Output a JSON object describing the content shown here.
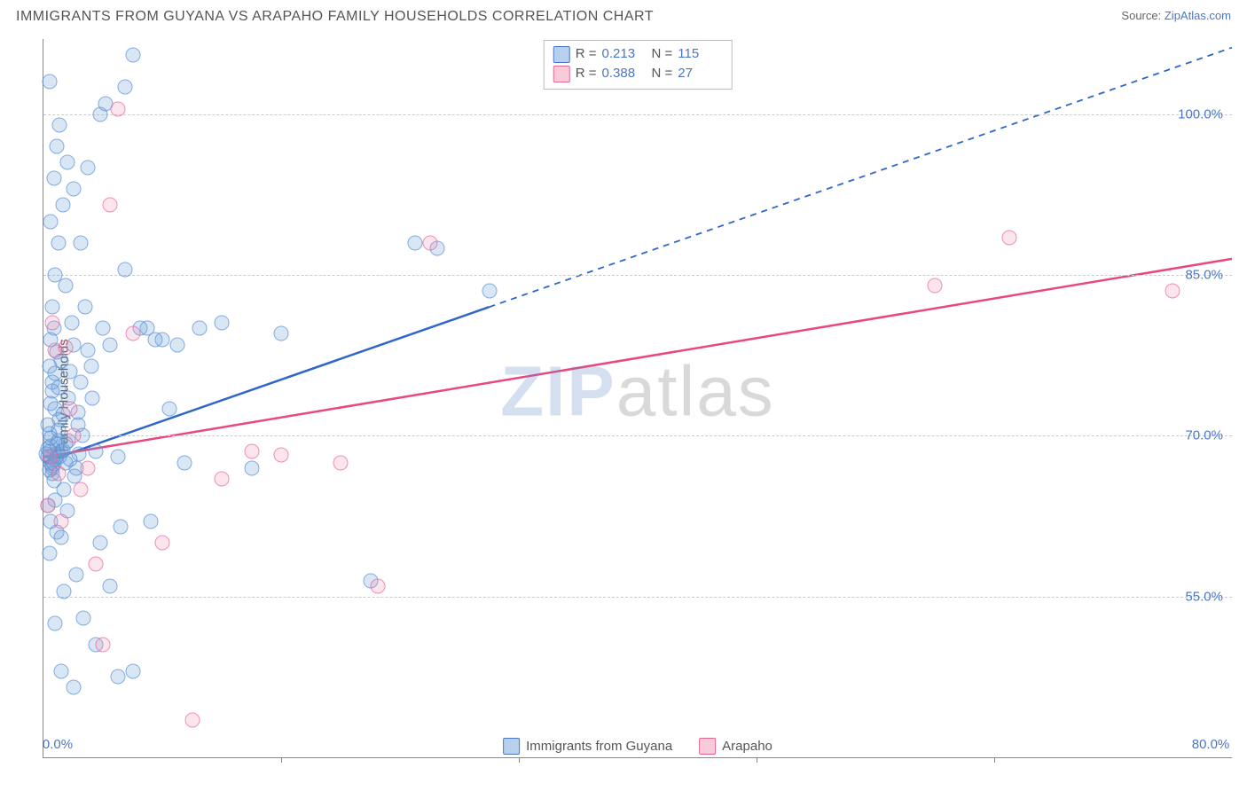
{
  "title": "IMMIGRANTS FROM GUYANA VS ARAPAHO FAMILY HOUSEHOLDS CORRELATION CHART",
  "source_label": "Source:",
  "source_name": "ZipAtlas.com",
  "y_axis_label": "Family Households",
  "watermark": {
    "zip": "ZIP",
    "atlas": "atlas"
  },
  "chart": {
    "type": "scatter",
    "background_color": "#ffffff",
    "grid_color": "#cccccc",
    "xlim": [
      0,
      80
    ],
    "ylim": [
      40,
      107
    ],
    "x_ticks": [
      0,
      80
    ],
    "x_tick_labels": [
      "0.0%",
      "80.0%"
    ],
    "x_tick_minor": [
      16,
      32,
      48,
      64
    ],
    "y_ticks": [
      55,
      70,
      85,
      100
    ],
    "y_tick_labels": [
      "55.0%",
      "70.0%",
      "85.0%",
      "100.0%"
    ],
    "series": [
      {
        "key": "guyana",
        "label": "Immigrants from Guyana",
        "color_fill": "rgba(111,162,219,0.35)",
        "color_stroke": "#5a8fd6",
        "line_color": "#2f67c9",
        "line_width": 2.5,
        "r": 0.213,
        "n": 115,
        "trend": {
          "x1": 0,
          "y1": 67.5,
          "x2": 30,
          "y2": 82.0,
          "extend_x": 80,
          "extend_y": 106.2,
          "dash_after_x": 30
        },
        "points": [
          [
            0.3,
            68
          ],
          [
            0.5,
            67.5
          ],
          [
            0.4,
            68.5
          ],
          [
            0.6,
            67
          ],
          [
            0.7,
            68.2
          ],
          [
            0.5,
            69
          ],
          [
            0.8,
            67.8
          ],
          [
            0.2,
            68.3
          ],
          [
            0.6,
            66.5
          ],
          [
            0.9,
            68
          ],
          [
            1.0,
            69.5
          ],
          [
            0.4,
            70.2
          ],
          [
            0.7,
            65.8
          ],
          [
            1.2,
            68.5
          ],
          [
            0.3,
            71
          ],
          [
            0.5,
            73
          ],
          [
            0.8,
            72.5
          ],
          [
            1.5,
            67.5
          ],
          [
            0.6,
            75
          ],
          [
            1.0,
            74.5
          ],
          [
            0.4,
            76.5
          ],
          [
            0.9,
            77.8
          ],
          [
            1.3,
            72
          ],
          [
            0.5,
            79
          ],
          [
            1.8,
            76
          ],
          [
            0.7,
            80
          ],
          [
            2.0,
            78.5
          ],
          [
            1.1,
            71.5
          ],
          [
            0.3,
            63.5
          ],
          [
            0.8,
            64
          ],
          [
            1.4,
            65
          ],
          [
            0.5,
            62
          ],
          [
            1.6,
            63
          ],
          [
            0.9,
            61
          ],
          [
            2.2,
            67
          ],
          [
            1.2,
            60.5
          ],
          [
            0.4,
            59
          ],
          [
            1.7,
            69.5
          ],
          [
            2.5,
            75
          ],
          [
            0.6,
            82
          ],
          [
            1.9,
            80.5
          ],
          [
            3.0,
            78
          ],
          [
            2.3,
            71
          ],
          [
            0.8,
            85
          ],
          [
            1.5,
            84
          ],
          [
            3.5,
            68.5
          ],
          [
            1.0,
            88
          ],
          [
            2.8,
            82
          ],
          [
            0.5,
            90
          ],
          [
            4.0,
            80
          ],
          [
            1.3,
            91.5
          ],
          [
            3.2,
            76.5
          ],
          [
            0.7,
            94
          ],
          [
            2.0,
            93
          ],
          [
            4.5,
            78.5
          ],
          [
            1.6,
            95.5
          ],
          [
            0.9,
            97
          ],
          [
            5.0,
            68
          ],
          [
            2.5,
            88
          ],
          [
            1.1,
            99
          ],
          [
            6.0,
            105.5
          ],
          [
            5.5,
            102.5
          ],
          [
            3.8,
            100
          ],
          [
            0.4,
            103
          ],
          [
            7.0,
            80
          ],
          [
            2.2,
            57
          ],
          [
            4.2,
            101
          ],
          [
            8.0,
            79
          ],
          [
            1.4,
            55.5
          ],
          [
            3.0,
            95
          ],
          [
            9.0,
            78.5
          ],
          [
            5.5,
            85.5
          ],
          [
            0.8,
            52.5
          ],
          [
            6.5,
            80
          ],
          [
            2.7,
            53
          ],
          [
            10.5,
            80
          ],
          [
            4.5,
            56
          ],
          [
            7.5,
            79
          ],
          [
            1.2,
            48
          ],
          [
            3.5,
            50.5
          ],
          [
            12.0,
            80.5
          ],
          [
            8.5,
            72.5
          ],
          [
            2.0,
            46.5
          ],
          [
            5.0,
            47.5
          ],
          [
            14.0,
            67
          ],
          [
            9.5,
            67.5
          ],
          [
            6.0,
            48
          ],
          [
            16.0,
            79.5
          ],
          [
            22.0,
            56.5
          ],
          [
            25.0,
            88
          ],
          [
            26.5,
            87.5
          ],
          [
            30.0,
            83.5
          ],
          [
            2.4,
            68.3
          ],
          [
            1.1,
            68
          ],
          [
            0.6,
            67.2
          ],
          [
            1.8,
            67.8
          ],
          [
            0.3,
            68.8
          ],
          [
            0.9,
            69.2
          ],
          [
            1.3,
            68.6
          ],
          [
            0.5,
            69.8
          ],
          [
            2.1,
            66.2
          ],
          [
            0.7,
            67.4
          ],
          [
            1.5,
            69.3
          ],
          [
            0.4,
            66.8
          ],
          [
            1.0,
            70.5
          ],
          [
            2.3,
            72.2
          ],
          [
            0.6,
            74.2
          ],
          [
            1.7,
            73.5
          ],
          [
            0.8,
            75.8
          ],
          [
            2.6,
            70
          ],
          [
            1.2,
            77
          ],
          [
            3.3,
            73.5
          ],
          [
            5.2,
            61.5
          ],
          [
            3.8,
            60
          ],
          [
            7.2,
            62
          ]
        ]
      },
      {
        "key": "arapaho",
        "label": "Arapaho",
        "color_fill": "rgba(240,140,170,0.3)",
        "color_stroke": "#e76a9b",
        "line_color": "#e8487f",
        "line_width": 2.5,
        "r": 0.388,
        "n": 27,
        "trend": {
          "x1": 0,
          "y1": 68.0,
          "x2": 80,
          "y2": 86.5
        },
        "points": [
          [
            0.5,
            68
          ],
          [
            1.0,
            66.5
          ],
          [
            0.3,
            63.5
          ],
          [
            1.5,
            78.2
          ],
          [
            0.8,
            78
          ],
          [
            2.0,
            70
          ],
          [
            1.2,
            62
          ],
          [
            3.0,
            67
          ],
          [
            0.6,
            80.5
          ],
          [
            4.5,
            91.5
          ],
          [
            1.8,
            72.5
          ],
          [
            6.0,
            79.5
          ],
          [
            2.5,
            65
          ],
          [
            8.0,
            60
          ],
          [
            3.5,
            58
          ],
          [
            10.0,
            43.5
          ],
          [
            4.0,
            50.5
          ],
          [
            12.0,
            66
          ],
          [
            14.0,
            68.5
          ],
          [
            16.0,
            68.2
          ],
          [
            20.0,
            67.5
          ],
          [
            22.5,
            56
          ],
          [
            26.0,
            88
          ],
          [
            60.0,
            84
          ],
          [
            65.0,
            88.5
          ],
          [
            76.0,
            83.5
          ],
          [
            5.0,
            100.5
          ]
        ]
      }
    ]
  }
}
